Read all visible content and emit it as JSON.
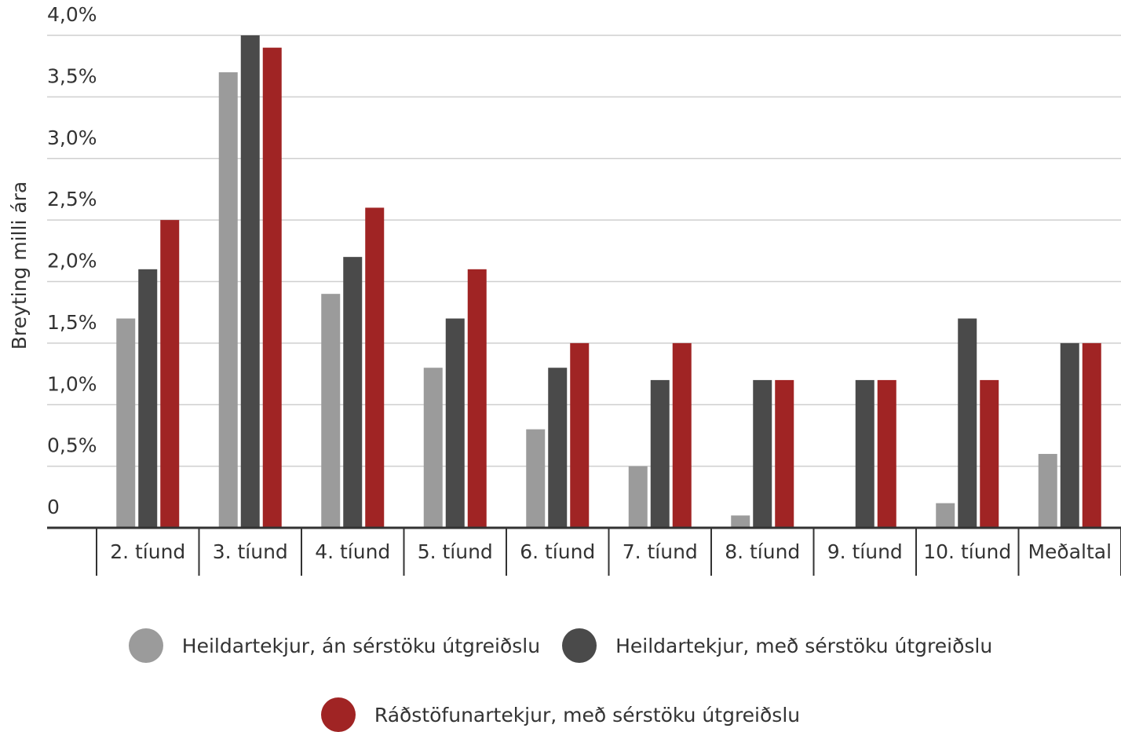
{
  "chart_data": {
    "type": "bar",
    "ylabel": "Breyting milli ára",
    "ylim": [
      0,
      4.0
    ],
    "yticks": [
      0,
      0.5,
      1.0,
      1.5,
      2.0,
      2.5,
      3.0,
      3.5,
      4.0
    ],
    "ytick_labels": [
      "0",
      "0,5%",
      "1,0%",
      "1,5%",
      "2,0%",
      "2,5%",
      "3,0%",
      "3,5%",
      "4,0%"
    ],
    "grid": true,
    "legend_position": "bottom",
    "categories": [
      "2. tíund",
      "3. tíund",
      "4. tíund",
      "5. tíund",
      "6. tíund",
      "7. tíund",
      "8. tíund",
      "9. tíund",
      "10. tíund",
      "Meðaltal"
    ],
    "series": [
      {
        "name": "Heildartekjur, án sérstöku útgreiðslu",
        "color": "#9b9b9b",
        "values": [
          1.7,
          3.7,
          1.9,
          1.3,
          0.8,
          0.5,
          0.1,
          0.0,
          0.2,
          0.6
        ]
      },
      {
        "name": "Heildartekjur, með sérstöku útgreiðslu",
        "color": "#4a4a4a",
        "values": [
          2.1,
          4.0,
          2.2,
          1.7,
          1.3,
          1.2,
          1.2,
          1.2,
          1.7,
          1.5
        ]
      },
      {
        "name": "Ráðstöfunartekjur, með sérstöku útgreiðslu",
        "color": "#a02424",
        "values": [
          2.5,
          3.9,
          2.6,
          2.1,
          1.5,
          1.5,
          1.2,
          1.2,
          1.2,
          1.5
        ]
      }
    ]
  }
}
